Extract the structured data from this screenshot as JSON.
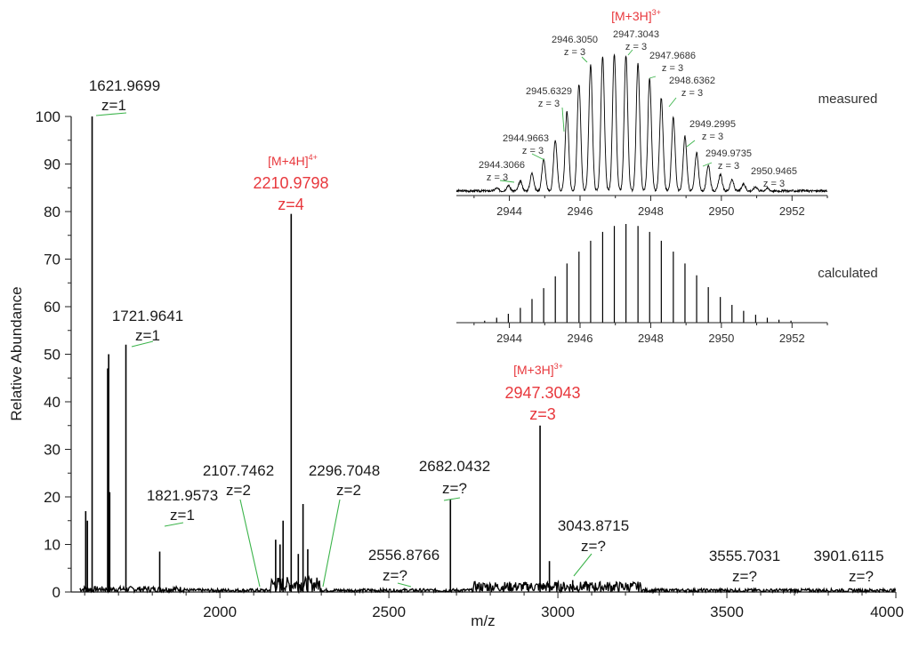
{
  "chart_data": [
    {
      "type": "line",
      "panel": "main",
      "xlabel": "m/z",
      "ylabel": "Relative Abundance",
      "xlim": [
        1560,
        4000
      ],
      "ylim": [
        0,
        100
      ],
      "x_ticks": [
        2000,
        2500,
        3000,
        3500,
        4000
      ],
      "x_tick_labels": [
        "2000",
        "2500",
        "3000",
        "3500",
        "4000"
      ],
      "y_ticks": [
        0,
        10,
        20,
        30,
        40,
        50,
        60,
        70,
        80,
        90,
        100
      ],
      "y_tick_labels": [
        "0",
        "10",
        "20",
        "30",
        "40",
        "50",
        "60",
        "70",
        "80",
        "90",
        "100"
      ],
      "peaks": [
        {
          "x": 1603,
          "y": 17
        },
        {
          "x": 1608,
          "y": 15
        },
        {
          "x": 1621.9699,
          "y": 100
        },
        {
          "x": 1668,
          "y": 47
        },
        {
          "x": 1671,
          "y": 50
        },
        {
          "x": 1674,
          "y": 21
        },
        {
          "x": 1721.9641,
          "y": 52
        },
        {
          "x": 1821.9573,
          "y": 8.5
        },
        {
          "x": 2165,
          "y": 11
        },
        {
          "x": 2178,
          "y": 10
        },
        {
          "x": 2187,
          "y": 15
        },
        {
          "x": 2210.9798,
          "y": 79.5
        },
        {
          "x": 2232,
          "y": 8
        },
        {
          "x": 2246,
          "y": 18.5
        },
        {
          "x": 2260,
          "y": 9
        },
        {
          "x": 2682.0432,
          "y": 19.5
        },
        {
          "x": 2947.3043,
          "y": 35
        },
        {
          "x": 2975,
          "y": 6.5
        },
        {
          "x": 3043.8715,
          "y": 2.5
        }
      ],
      "annotations": [
        {
          "mz": "1621.9699",
          "z": "z=1"
        },
        {
          "mz": "1721.9641",
          "z": "z=1"
        },
        {
          "mz": "1821.9573",
          "z": "z=1"
        },
        {
          "mz": "2107.7462",
          "z": "z=2"
        },
        {
          "mz": "2296.7048",
          "z": "z=2"
        },
        {
          "mz": "2556.8766",
          "z": "z=?"
        },
        {
          "mz": "2682.0432",
          "z": "z=?"
        },
        {
          "mz": "3043.8715",
          "z": "z=?"
        },
        {
          "mz": "3555.7031",
          "z": "z=?"
        },
        {
          "mz": "3901.6115",
          "z": "z=?"
        }
      ],
      "highlighted": [
        {
          "ion_base": "[M+4H]",
          "ion_charge": "4+",
          "mz": "2210.9798",
          "z": "z=4"
        },
        {
          "ion_base": "[M+3H]",
          "ion_charge": "3+",
          "mz": "2947.3043",
          "z": "z=3"
        }
      ],
      "colors": {
        "trace": "#000000",
        "highlight": "#e8383d",
        "leader": "#3cb44b"
      }
    },
    {
      "type": "line",
      "panel": "inset-measured",
      "label": "measured",
      "xlim": [
        2942.5,
        2953
      ],
      "x_ticks": [
        2944,
        2946,
        2948,
        2950,
        2952
      ],
      "x_tick_labels": [
        "2944",
        "2946",
        "2948",
        "2950",
        "2952"
      ],
      "title_ion_base": "[M+3H]",
      "title_ion_charge": "3+",
      "peaks": [
        {
          "x": 2943.64,
          "y": 2
        },
        {
          "x": 2943.97,
          "y": 4
        },
        {
          "x": 2944.31,
          "y": 7
        },
        {
          "x": 2944.64,
          "y": 13
        },
        {
          "x": 2944.97,
          "y": 23
        },
        {
          "x": 2945.3,
          "y": 37
        },
        {
          "x": 2945.63,
          "y": 58
        },
        {
          "x": 2945.97,
          "y": 78
        },
        {
          "x": 2946.3,
          "y": 92
        },
        {
          "x": 2946.64,
          "y": 98
        },
        {
          "x": 2946.97,
          "y": 100
        },
        {
          "x": 2947.3,
          "y": 99
        },
        {
          "x": 2947.64,
          "y": 93
        },
        {
          "x": 2947.97,
          "y": 82
        },
        {
          "x": 2948.3,
          "y": 68
        },
        {
          "x": 2948.64,
          "y": 54
        },
        {
          "x": 2948.97,
          "y": 40
        },
        {
          "x": 2949.3,
          "y": 28
        },
        {
          "x": 2949.63,
          "y": 19
        },
        {
          "x": 2949.97,
          "y": 12
        },
        {
          "x": 2950.3,
          "y": 8
        },
        {
          "x": 2950.63,
          "y": 5
        },
        {
          "x": 2950.97,
          "y": 3
        },
        {
          "x": 2951.3,
          "y": 2
        }
      ],
      "annotations": [
        {
          "mz": "2944.3066",
          "z": "z = 3"
        },
        {
          "mz": "2944.9663",
          "z": "z = 3"
        },
        {
          "mz": "2945.6329",
          "z": "z = 3"
        },
        {
          "mz": "2946.3050",
          "z": "z = 3"
        },
        {
          "mz": "2947.3043",
          "z": "z = 3"
        },
        {
          "mz": "2947.9686",
          "z": "z = 3"
        },
        {
          "mz": "2948.6362",
          "z": "z = 3"
        },
        {
          "mz": "2949.2995",
          "z": "z = 3"
        },
        {
          "mz": "2949.9735",
          "z": "z = 3"
        },
        {
          "mz": "2950.9465",
          "z": "z = 3"
        }
      ]
    },
    {
      "type": "bar",
      "panel": "inset-calculated",
      "label": "calculated",
      "xlim": [
        2942.5,
        2953
      ],
      "x_ticks": [
        2944,
        2946,
        2948,
        2950,
        2952
      ],
      "x_tick_labels": [
        "2944",
        "2946",
        "2948",
        "2950",
        "2952"
      ],
      "peaks": [
        {
          "x": 2943.3,
          "y": 2
        },
        {
          "x": 2943.64,
          "y": 5
        },
        {
          "x": 2943.97,
          "y": 9
        },
        {
          "x": 2944.31,
          "y": 15
        },
        {
          "x": 2944.64,
          "y": 24
        },
        {
          "x": 2944.97,
          "y": 35
        },
        {
          "x": 2945.3,
          "y": 47
        },
        {
          "x": 2945.63,
          "y": 60
        },
        {
          "x": 2945.97,
          "y": 72
        },
        {
          "x": 2946.3,
          "y": 83
        },
        {
          "x": 2946.64,
          "y": 92
        },
        {
          "x": 2946.97,
          "y": 98
        },
        {
          "x": 2947.3,
          "y": 100
        },
        {
          "x": 2947.64,
          "y": 98
        },
        {
          "x": 2947.97,
          "y": 92
        },
        {
          "x": 2948.3,
          "y": 83
        },
        {
          "x": 2948.64,
          "y": 72
        },
        {
          "x": 2948.97,
          "y": 60
        },
        {
          "x": 2949.3,
          "y": 48
        },
        {
          "x": 2949.63,
          "y": 36
        },
        {
          "x": 2949.97,
          "y": 26
        },
        {
          "x": 2950.3,
          "y": 18
        },
        {
          "x": 2950.63,
          "y": 12
        },
        {
          "x": 2950.97,
          "y": 8
        },
        {
          "x": 2951.3,
          "y": 5
        },
        {
          "x": 2951.63,
          "y": 3
        },
        {
          "x": 2951.97,
          "y": 2
        }
      ]
    }
  ]
}
